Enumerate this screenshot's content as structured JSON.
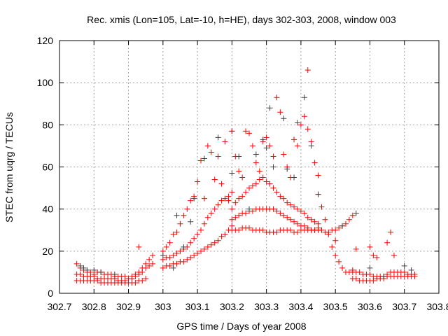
{
  "chart_data": {
    "type": "scatter",
    "title": "Rec. xmis (Lon=105, Lat=-10, h=HE), days 302-303, 2008, window 003",
    "xlabel": "GPS time / Days of year 2008",
    "ylabel": "STEC from uqrg / TECUs",
    "xlim": [
      302.7,
      303.8
    ],
    "ylim": [
      0,
      120
    ],
    "xticks": [
      302.7,
      302.8,
      302.9,
      303,
      303.1,
      303.2,
      303.3,
      303.4,
      303.5,
      303.6,
      303.7,
      303.8
    ],
    "xtick_labels": [
      "302.7",
      "302.8",
      "302.9",
      "303",
      "303.1",
      "303.2",
      "303.3",
      "303.4",
      "303.5",
      "303.6",
      "303.7",
      "303.8"
    ],
    "yticks": [
      0,
      20,
      40,
      60,
      80,
      100,
      120
    ],
    "ytick_labels": [
      "0",
      "20",
      "40",
      "60",
      "80",
      "100",
      "120"
    ],
    "grid": true,
    "legend": "none",
    "series": [
      {
        "name": "red",
        "color": "#ff0000",
        "tracks": [
          {
            "x0": 302.75,
            "step": 0.01,
            "y": [
              6,
              6,
              6,
              6,
              6,
              6,
              6,
              5,
              5,
              5,
              5,
              5,
              5,
              5,
              5,
              5,
              5,
              5,
              6,
              6,
              7
            ]
          },
          {
            "x0": 302.75,
            "step": 0.01,
            "y": [
              9,
              9,
              8,
              8,
              8,
              8,
              7,
              7,
              7,
              7,
              7,
              7,
              6,
              6,
              6,
              7,
              7,
              8,
              9,
              10,
              12,
              13,
              14
            ]
          },
          {
            "x0": 302.75,
            "step": 0.01,
            "y": [
              14,
              12,
              11,
              10,
              10,
              9,
              10,
              10,
              9,
              9,
              9,
              8,
              8,
              8,
              8,
              7,
              8,
              9,
              10,
              12,
              14
            ]
          },
          {
            "x0": 303.0,
            "step": 0.01,
            "y": [
              12,
              13,
              13,
              14,
              14,
              15,
              15,
              16,
              17,
              18,
              19,
              20,
              21,
              22,
              23,
              24,
              25,
              27,
              28,
              30,
              32
            ]
          },
          {
            "x0": 303.0,
            "step": 0.01,
            "y": [
              16,
              17,
              17,
              18,
              19,
              20,
              21,
              22,
              24,
              26,
              28,
              30,
              33,
              36,
              38,
              40,
              42,
              44,
              45,
              46,
              48
            ]
          },
          {
            "x0": 303.0,
            "step": 0.01,
            "y": [
              20,
              22,
              24,
              28,
              29,
              33,
              37,
              40,
              44,
              46,
              53,
              63,
              45,
              70,
              67,
              54,
              65,
              52,
              72,
              44,
              77
            ]
          },
          {
            "x0": 303.2,
            "step": 0.01,
            "y": [
              30,
              30,
              30,
              31,
              31,
              31,
              30,
              30,
              30,
              30,
              29,
              29,
              29,
              29,
              30,
              30,
              30,
              30,
              29,
              29,
              30,
              30,
              30,
              30,
              30,
              31
            ]
          },
          {
            "x0": 303.2,
            "step": 0.01,
            "y": [
              35,
              36,
              37,
              38,
              38,
              39,
              39,
              40,
              40,
              40,
              40,
              40,
              40,
              39,
              38,
              37,
              36,
              35,
              34,
              33,
              32,
              32,
              31,
              30,
              30,
              30
            ]
          },
          {
            "x0": 303.2,
            "step": 0.01,
            "y": [
              40,
              43,
              45,
              46,
              48,
              50,
              51,
              52,
              54,
              55,
              53,
              52,
              50,
              48,
              46,
              45,
              43,
              42,
              41,
              40,
              39,
              38,
              36,
              35,
              34,
              33
            ]
          },
          {
            "x0": 303.2,
            "step": 0.01,
            "y": [
              77,
              65,
              58,
              55,
              77,
              76,
              70,
              62,
              58,
              72,
              74,
              70,
              65,
              93,
              86,
              66,
              60,
              55,
              73,
              70,
              80,
              84,
              78,
              72,
              62,
              56
            ]
          },
          {
            "x0": 303.45,
            "step": 0.01,
            "y": [
              47,
              41,
              35,
              28,
              22,
              18,
              15,
              12,
              10,
              10,
              11
            ]
          },
          {
            "x0": 303.45,
            "step": 0.01,
            "y": [
              30,
              30,
              29,
              29,
              30,
              30,
              31,
              32,
              33,
              35,
              37
            ]
          },
          {
            "x0": 303.55,
            "step": 0.01,
            "y": [
              10,
              10,
              10,
              9,
              9,
              9,
              8,
              8,
              8,
              8,
              9,
              10,
              10,
              10,
              10,
              10,
              9,
              9,
              9
            ]
          },
          {
            "x0": 303.55,
            "step": 0.01,
            "y": [
              7,
              7,
              6,
              6,
              6,
              6,
              6,
              7,
              7,
              7,
              8,
              8,
              8,
              8,
              8,
              8,
              8,
              8,
              8
            ]
          }
        ],
        "points": [
          [
            302.93,
            22
          ],
          [
            302.96,
            16
          ],
          [
            302.97,
            18
          ],
          [
            303.42,
            106
          ],
          [
            303.56,
            21
          ],
          [
            303.6,
            22
          ],
          [
            303.61,
            18
          ],
          [
            303.62,
            17
          ],
          [
            303.65,
            24
          ],
          [
            303.66,
            29
          ],
          [
            303.67,
            18
          ],
          [
            303.5,
            25
          ]
        ]
      },
      {
        "name": "gray",
        "color": "#404040",
        "tracks": [],
        "points": [
          [
            302.76,
            13
          ],
          [
            302.77,
            12
          ],
          [
            302.78,
            11
          ],
          [
            302.8,
            11
          ],
          [
            302.82,
            10
          ],
          [
            302.86,
            9
          ],
          [
            303.0,
            18
          ],
          [
            303.03,
            12
          ],
          [
            303.04,
            37
          ],
          [
            303.06,
            22
          ],
          [
            303.08,
            34
          ],
          [
            303.09,
            45
          ],
          [
            303.12,
            64
          ],
          [
            303.16,
            74
          ],
          [
            303.2,
            57
          ],
          [
            303.22,
            65
          ],
          [
            303.25,
            40
          ],
          [
            303.27,
            66
          ],
          [
            303.29,
            73
          ],
          [
            303.3,
            69
          ],
          [
            303.31,
            88
          ],
          [
            303.32,
            60
          ],
          [
            303.35,
            83
          ],
          [
            303.36,
            59
          ],
          [
            303.38,
            55
          ],
          [
            303.39,
            81
          ],
          [
            303.41,
            93
          ],
          [
            303.43,
            70
          ],
          [
            303.45,
            47
          ],
          [
            303.52,
            32
          ],
          [
            303.56,
            38
          ],
          [
            303.6,
            12
          ],
          [
            303.64,
            8
          ],
          [
            303.7,
            13
          ],
          [
            303.72,
            11
          ]
        ]
      }
    ]
  }
}
